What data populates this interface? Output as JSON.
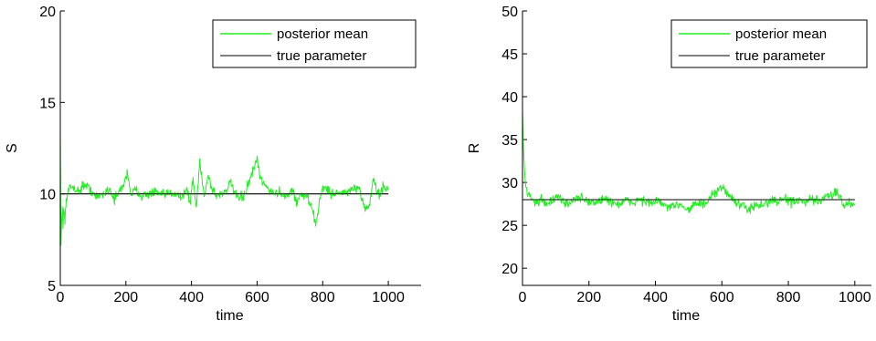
{
  "colors": {
    "posterior": "#22ee22",
    "true_param": "#000000",
    "axis": "#000000",
    "background": "#ffffff"
  },
  "chart_data": [
    {
      "type": "line",
      "xlabel": "time",
      "ylabel": "S",
      "xlim": [
        0,
        1100
      ],
      "ylim": [
        5,
        20
      ],
      "xticks": [
        0,
        200,
        400,
        600,
        800,
        1000
      ],
      "yticks": [
        5,
        10,
        15,
        20
      ],
      "grid": false,
      "legend_position": "top-right",
      "series": [
        {
          "name": "posterior mean",
          "color": "#22ee22",
          "x": [
            0,
            2,
            4,
            6,
            8,
            10,
            14,
            20,
            28,
            40,
            55,
            70,
            90,
            110,
            130,
            150,
            165,
            180,
            195,
            205,
            215,
            230,
            250,
            270,
            290,
            310,
            330,
            350,
            370,
            385,
            395,
            405,
            415,
            425,
            432,
            440,
            450,
            460,
            475,
            490,
            505,
            520,
            540,
            560,
            575,
            590,
            600,
            610,
            620,
            635,
            650,
            665,
            680,
            695,
            710,
            720,
            730,
            740,
            750,
            760,
            770,
            780,
            790,
            800,
            815,
            830,
            850,
            870,
            890,
            910,
            925,
            935,
            945,
            955,
            965,
            975,
            985,
            1000
          ],
          "values": [
            13.3,
            7.2,
            8.4,
            9.3,
            8.1,
            9.2,
            8.7,
            9.9,
            10.3,
            10.4,
            10.1,
            10.5,
            10.3,
            9.8,
            10.0,
            10.3,
            9.7,
            10.1,
            10.6,
            11.2,
            10.0,
            10.2,
            9.9,
            10.0,
            10.1,
            9.9,
            10.0,
            10.1,
            9.8,
            10.3,
            9.5,
            10.8,
            9.2,
            11.8,
            10.9,
            9.8,
            11.1,
            10.4,
            9.9,
            10.0,
            10.2,
            10.6,
            9.7,
            9.9,
            10.6,
            11.4,
            11.8,
            10.9,
            10.5,
            10.3,
            10.0,
            10.1,
            10.0,
            9.9,
            10.3,
            9.4,
            10.0,
            9.8,
            10.0,
            9.5,
            9.0,
            8.3,
            9.6,
            10.4,
            10.2,
            10.0,
            10.1,
            10.0,
            10.3,
            10.2,
            9.4,
            9.2,
            9.6,
            10.9,
            10.1,
            10.0,
            10.4,
            10.2
          ]
        },
        {
          "name": "true parameter",
          "color": "#000000",
          "x": [
            0,
            1000
          ],
          "values": [
            10,
            10
          ]
        }
      ]
    },
    {
      "type": "line",
      "xlabel": "time",
      "ylabel": "R",
      "xlim": [
        0,
        1050
      ],
      "ylim": [
        18,
        50
      ],
      "xticks": [
        0,
        200,
        400,
        600,
        800,
        1000
      ],
      "yticks": [
        20,
        25,
        30,
        35,
        40,
        45,
        50
      ],
      "grid": false,
      "legend_position": "top-right",
      "series": [
        {
          "name": "posterior mean",
          "color": "#22ee22",
          "x": [
            0,
            2,
            4,
            6,
            8,
            10,
            14,
            20,
            28,
            36,
            45,
            55,
            70,
            90,
            110,
            130,
            150,
            170,
            190,
            210,
            230,
            250,
            270,
            290,
            310,
            330,
            350,
            370,
            390,
            410,
            430,
            450,
            470,
            490,
            500,
            510,
            530,
            550,
            570,
            585,
            600,
            615,
            630,
            650,
            670,
            690,
            710,
            730,
            750,
            770,
            790,
            810,
            830,
            850,
            870,
            890,
            910,
            930,
            945,
            955,
            965,
            980,
            1000
          ],
          "values": [
            38.5,
            35.0,
            33.0,
            31.5,
            30.3,
            29.5,
            29.2,
            28.5,
            28.1,
            27.9,
            27.6,
            28.0,
            27.6,
            27.9,
            28.3,
            27.5,
            27.9,
            28.2,
            28.0,
            27.6,
            27.8,
            28.1,
            27.7,
            27.4,
            27.9,
            27.6,
            28.0,
            27.8,
            27.5,
            27.9,
            27.2,
            27.0,
            27.6,
            27.1,
            26.8,
            27.3,
            27.6,
            27.4,
            28.4,
            28.9,
            29.4,
            28.9,
            28.2,
            27.4,
            27.1,
            27.0,
            27.3,
            27.5,
            27.9,
            27.8,
            28.1,
            27.7,
            27.9,
            27.6,
            28.0,
            27.8,
            28.2,
            28.5,
            29.1,
            28.5,
            27.3,
            27.6,
            27.3
          ]
        },
        {
          "name": "true parameter",
          "color": "#000000",
          "x": [
            0,
            1000
          ],
          "values": [
            28,
            28
          ]
        }
      ]
    }
  ]
}
